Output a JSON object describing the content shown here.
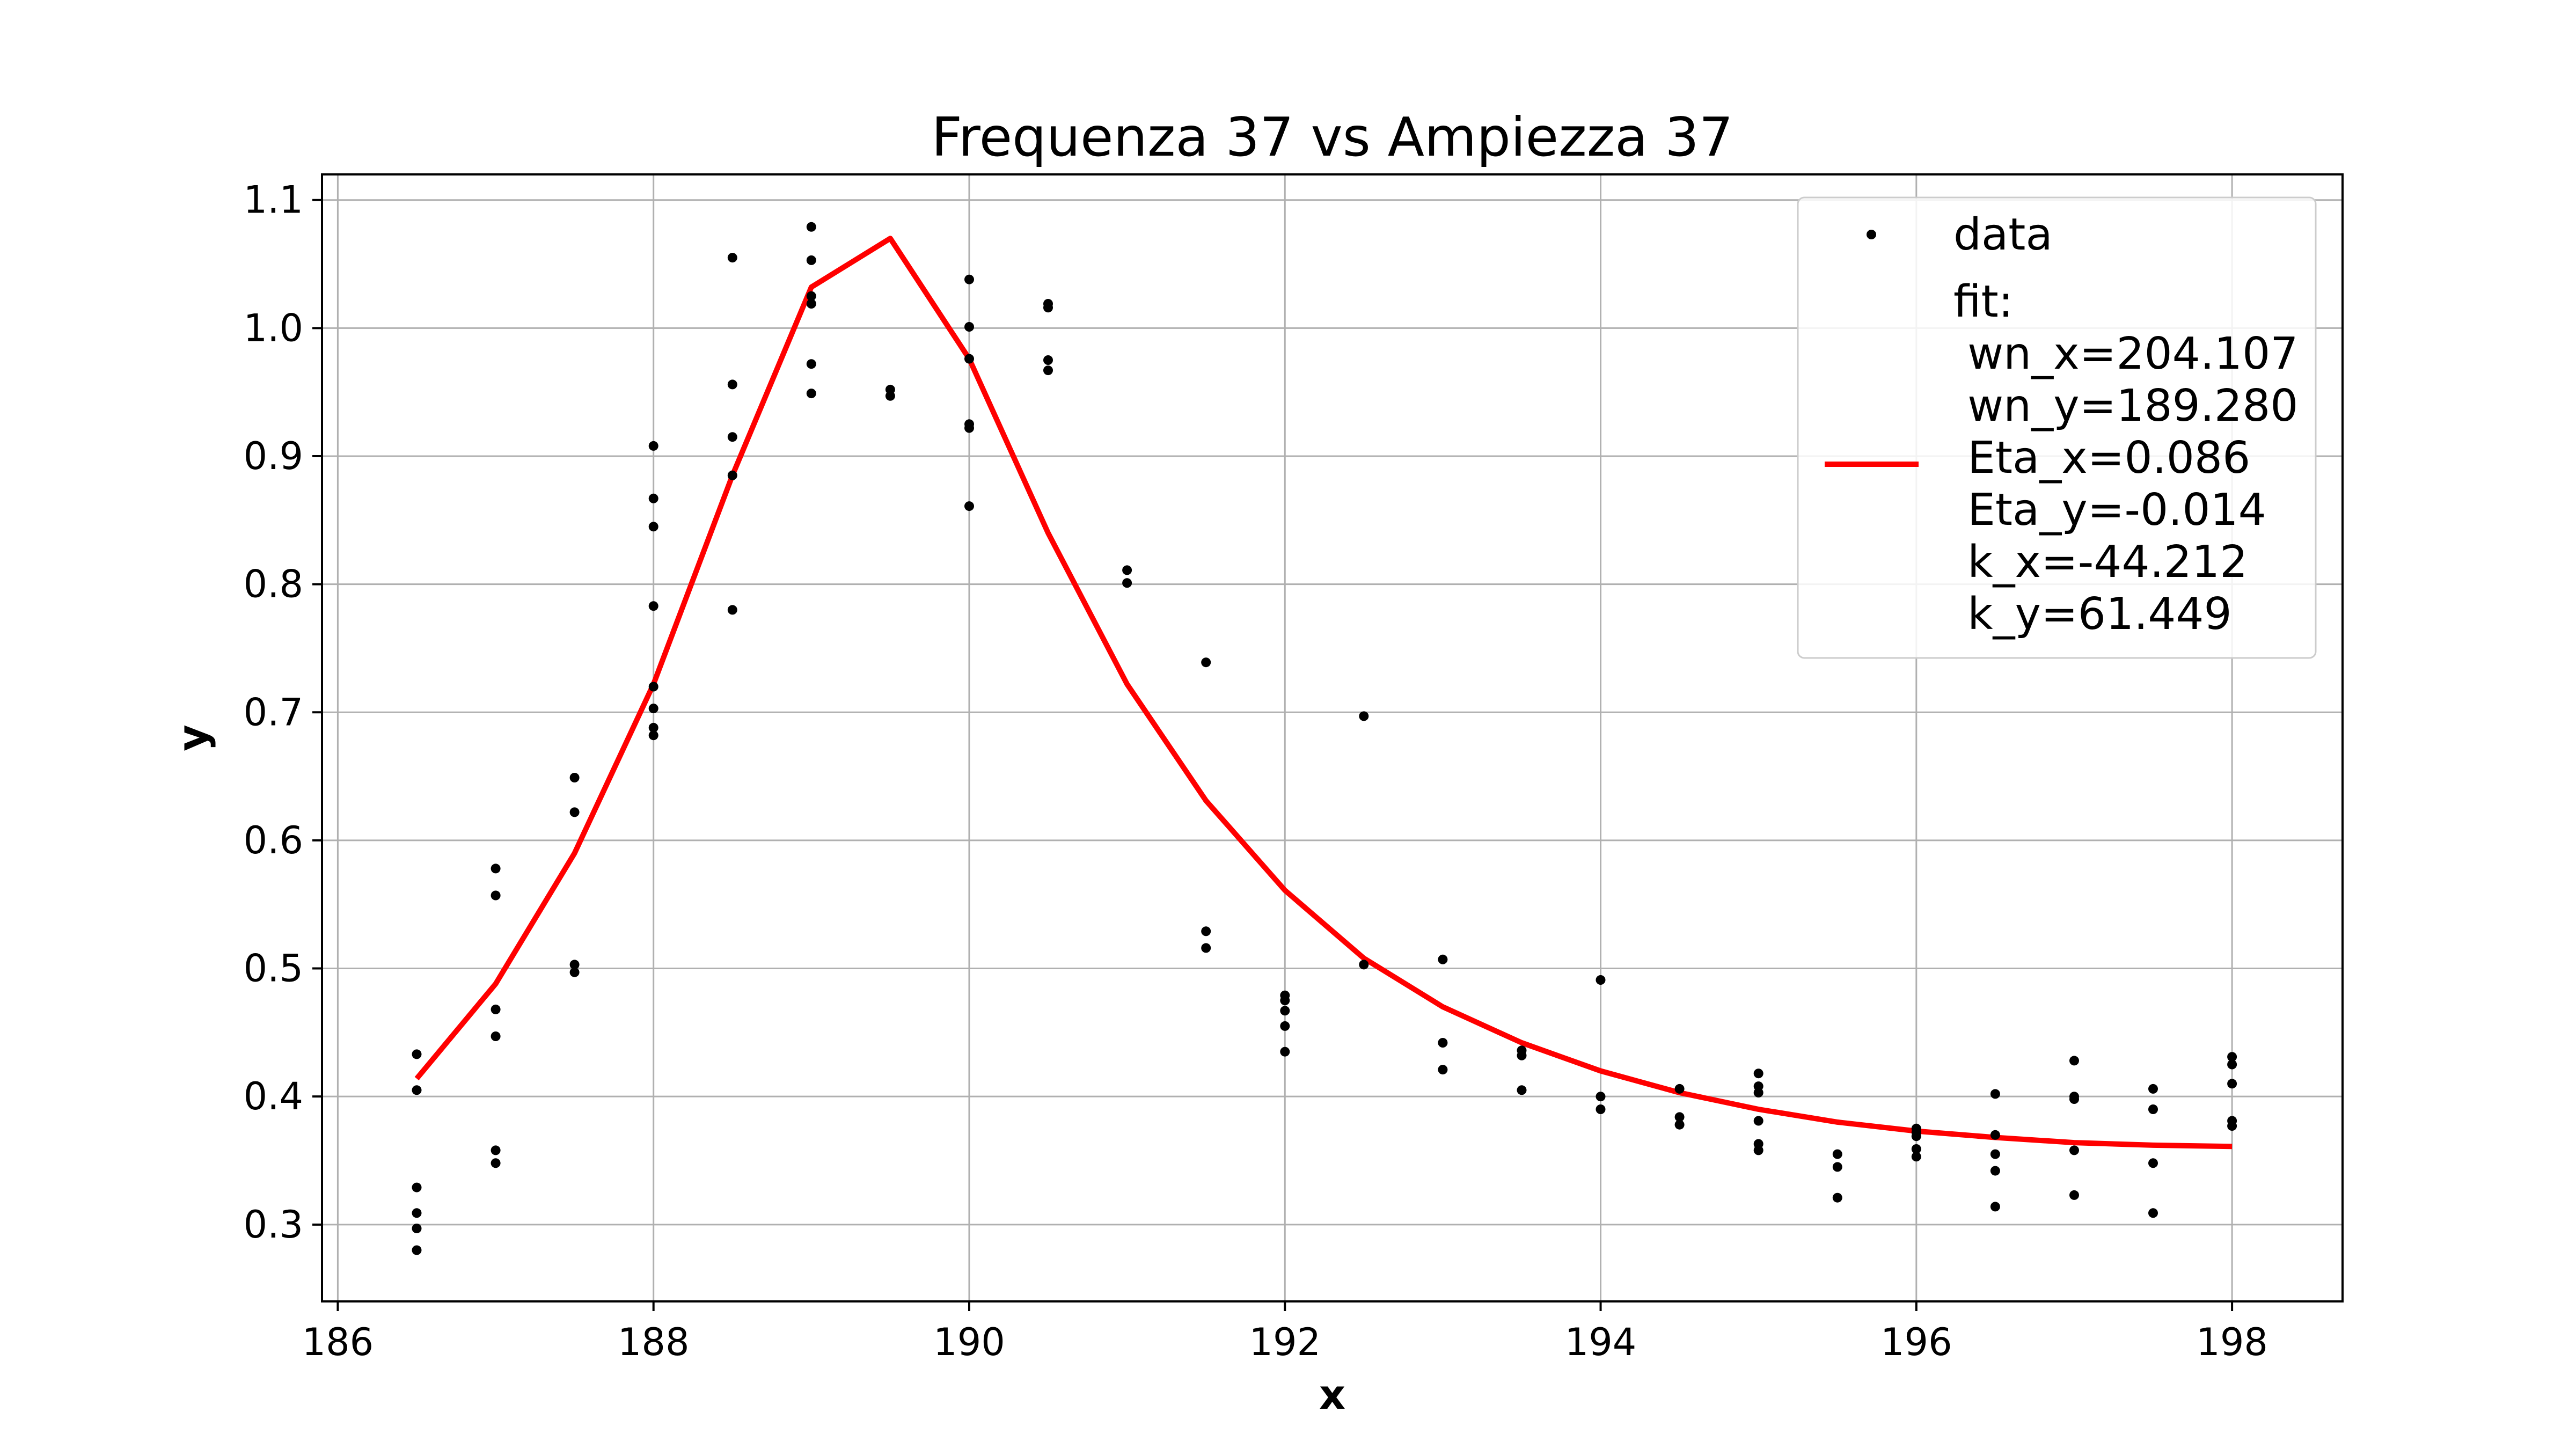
{
  "chart_data": {
    "type": "scatter",
    "title": "Frequenza 37 vs Ampiezza 37",
    "xlabel": "x",
    "ylabel": "y",
    "xlim": [
      185.9,
      198.7
    ],
    "ylim": [
      0.24,
      1.12
    ],
    "x_ticks": [
      186,
      188,
      190,
      192,
      194,
      196,
      198
    ],
    "x_tick_labels": [
      "186",
      "188",
      "190",
      "192",
      "194",
      "196",
      "198"
    ],
    "y_ticks": [
      0.3,
      0.4,
      0.5,
      0.6,
      0.7,
      0.8,
      0.9,
      1.0,
      1.1
    ],
    "y_tick_labels": [
      "0.3",
      "0.4",
      "0.5",
      "0.6",
      "0.7",
      "0.8",
      "0.9",
      "1.0",
      "1.1"
    ],
    "grid": true,
    "legend_position": "top-right",
    "colors": {
      "data": "#000000",
      "fit": "#ff0000",
      "grid": "#b0b0b0"
    },
    "series": [
      {
        "name": "data",
        "kind": "scatter",
        "points": [
          [
            186.5,
            0.433
          ],
          [
            186.5,
            0.405
          ],
          [
            186.5,
            0.329
          ],
          [
            186.5,
            0.309
          ],
          [
            186.5,
            0.297
          ],
          [
            186.5,
            0.28
          ],
          [
            187.0,
            0.578
          ],
          [
            187.0,
            0.557
          ],
          [
            187.0,
            0.468
          ],
          [
            187.0,
            0.447
          ],
          [
            187.0,
            0.358
          ],
          [
            187.0,
            0.348
          ],
          [
            187.5,
            0.649
          ],
          [
            187.5,
            0.622
          ],
          [
            187.5,
            0.503
          ],
          [
            187.5,
            0.497
          ],
          [
            188.0,
            0.908
          ],
          [
            188.0,
            0.867
          ],
          [
            188.0,
            0.845
          ],
          [
            188.0,
            0.783
          ],
          [
            188.0,
            0.72
          ],
          [
            188.0,
            0.703
          ],
          [
            188.0,
            0.688
          ],
          [
            188.0,
            0.682
          ],
          [
            188.5,
            1.055
          ],
          [
            188.5,
            0.956
          ],
          [
            188.5,
            0.915
          ],
          [
            188.5,
            0.885
          ],
          [
            188.5,
            0.78
          ],
          [
            189.0,
            1.079
          ],
          [
            189.0,
            1.053
          ],
          [
            189.0,
            1.025
          ],
          [
            189.0,
            1.019
          ],
          [
            189.0,
            0.972
          ],
          [
            189.0,
            0.949
          ],
          [
            189.5,
            0.952
          ],
          [
            189.5,
            0.947
          ],
          [
            190.0,
            1.038
          ],
          [
            190.0,
            1.001
          ],
          [
            190.0,
            0.976
          ],
          [
            190.0,
            0.925
          ],
          [
            190.0,
            0.922
          ],
          [
            190.0,
            0.861
          ],
          [
            190.5,
            1.019
          ],
          [
            190.5,
            1.016
          ],
          [
            190.5,
            0.975
          ],
          [
            190.5,
            0.967
          ],
          [
            191.0,
            0.811
          ],
          [
            191.0,
            0.801
          ],
          [
            191.5,
            0.739
          ],
          [
            191.5,
            0.529
          ],
          [
            191.5,
            0.516
          ],
          [
            192.0,
            0.479
          ],
          [
            192.0,
            0.475
          ],
          [
            192.0,
            0.467
          ],
          [
            192.0,
            0.455
          ],
          [
            192.0,
            0.435
          ],
          [
            192.5,
            0.697
          ],
          [
            192.5,
            0.503
          ],
          [
            193.0,
            0.507
          ],
          [
            193.0,
            0.442
          ],
          [
            193.0,
            0.421
          ],
          [
            193.5,
            0.436
          ],
          [
            193.5,
            0.432
          ],
          [
            193.5,
            0.405
          ],
          [
            194.0,
            0.491
          ],
          [
            194.0,
            0.4
          ],
          [
            194.0,
            0.39
          ],
          [
            194.5,
            0.406
          ],
          [
            194.5,
            0.384
          ],
          [
            194.5,
            0.378
          ],
          [
            195.0,
            0.418
          ],
          [
            195.0,
            0.408
          ],
          [
            195.0,
            0.403
          ],
          [
            195.0,
            0.381
          ],
          [
            195.0,
            0.363
          ],
          [
            195.0,
            0.358
          ],
          [
            195.5,
            0.355
          ],
          [
            195.5,
            0.345
          ],
          [
            195.5,
            0.321
          ],
          [
            196.0,
            0.375
          ],
          [
            196.0,
            0.372
          ],
          [
            196.0,
            0.369
          ],
          [
            196.0,
            0.359
          ],
          [
            196.0,
            0.353
          ],
          [
            196.5,
            0.402
          ],
          [
            196.5,
            0.37
          ],
          [
            196.5,
            0.355
          ],
          [
            196.5,
            0.342
          ],
          [
            196.5,
            0.314
          ],
          [
            197.0,
            0.428
          ],
          [
            197.0,
            0.4
          ],
          [
            197.0,
            0.398
          ],
          [
            197.0,
            0.358
          ],
          [
            197.0,
            0.323
          ],
          [
            197.5,
            0.406
          ],
          [
            197.5,
            0.39
          ],
          [
            197.5,
            0.348
          ],
          [
            197.5,
            0.309
          ],
          [
            198.0,
            0.431
          ],
          [
            198.0,
            0.425
          ],
          [
            198.0,
            0.41
          ],
          [
            198.0,
            0.381
          ],
          [
            198.0,
            0.377
          ]
        ]
      },
      {
        "name": "fit:\n wn_x=204.107\n wn_y=189.280\n Eta_x=0.086\n Eta_y=-0.014\n k_x=-44.212\n k_y=61.449",
        "kind": "line",
        "x": [
          186.5,
          187.0,
          187.5,
          188.0,
          188.5,
          189.0,
          189.5,
          190.0,
          190.5,
          191.0,
          191.5,
          192.0,
          192.5,
          193.0,
          193.5,
          194.0,
          194.5,
          195.0,
          195.5,
          196.0,
          196.5,
          197.0,
          197.5,
          198.0
        ],
        "y": [
          0.414,
          0.488,
          0.59,
          0.722,
          0.885,
          1.032,
          1.07,
          0.976,
          0.84,
          0.722,
          0.631,
          0.561,
          0.508,
          0.47,
          0.442,
          0.42,
          0.403,
          0.39,
          0.38,
          0.373,
          0.368,
          0.364,
          0.362,
          0.361
        ]
      }
    ],
    "legend": {
      "entries": [
        {
          "label": "data"
        },
        {
          "label_lines": [
            "fit:",
            " wn_x=204.107",
            " wn_y=189.280",
            " Eta_x=0.086",
            " Eta_y=-0.014",
            " k_x=-44.212",
            " k_y=61.449"
          ]
        }
      ]
    }
  }
}
